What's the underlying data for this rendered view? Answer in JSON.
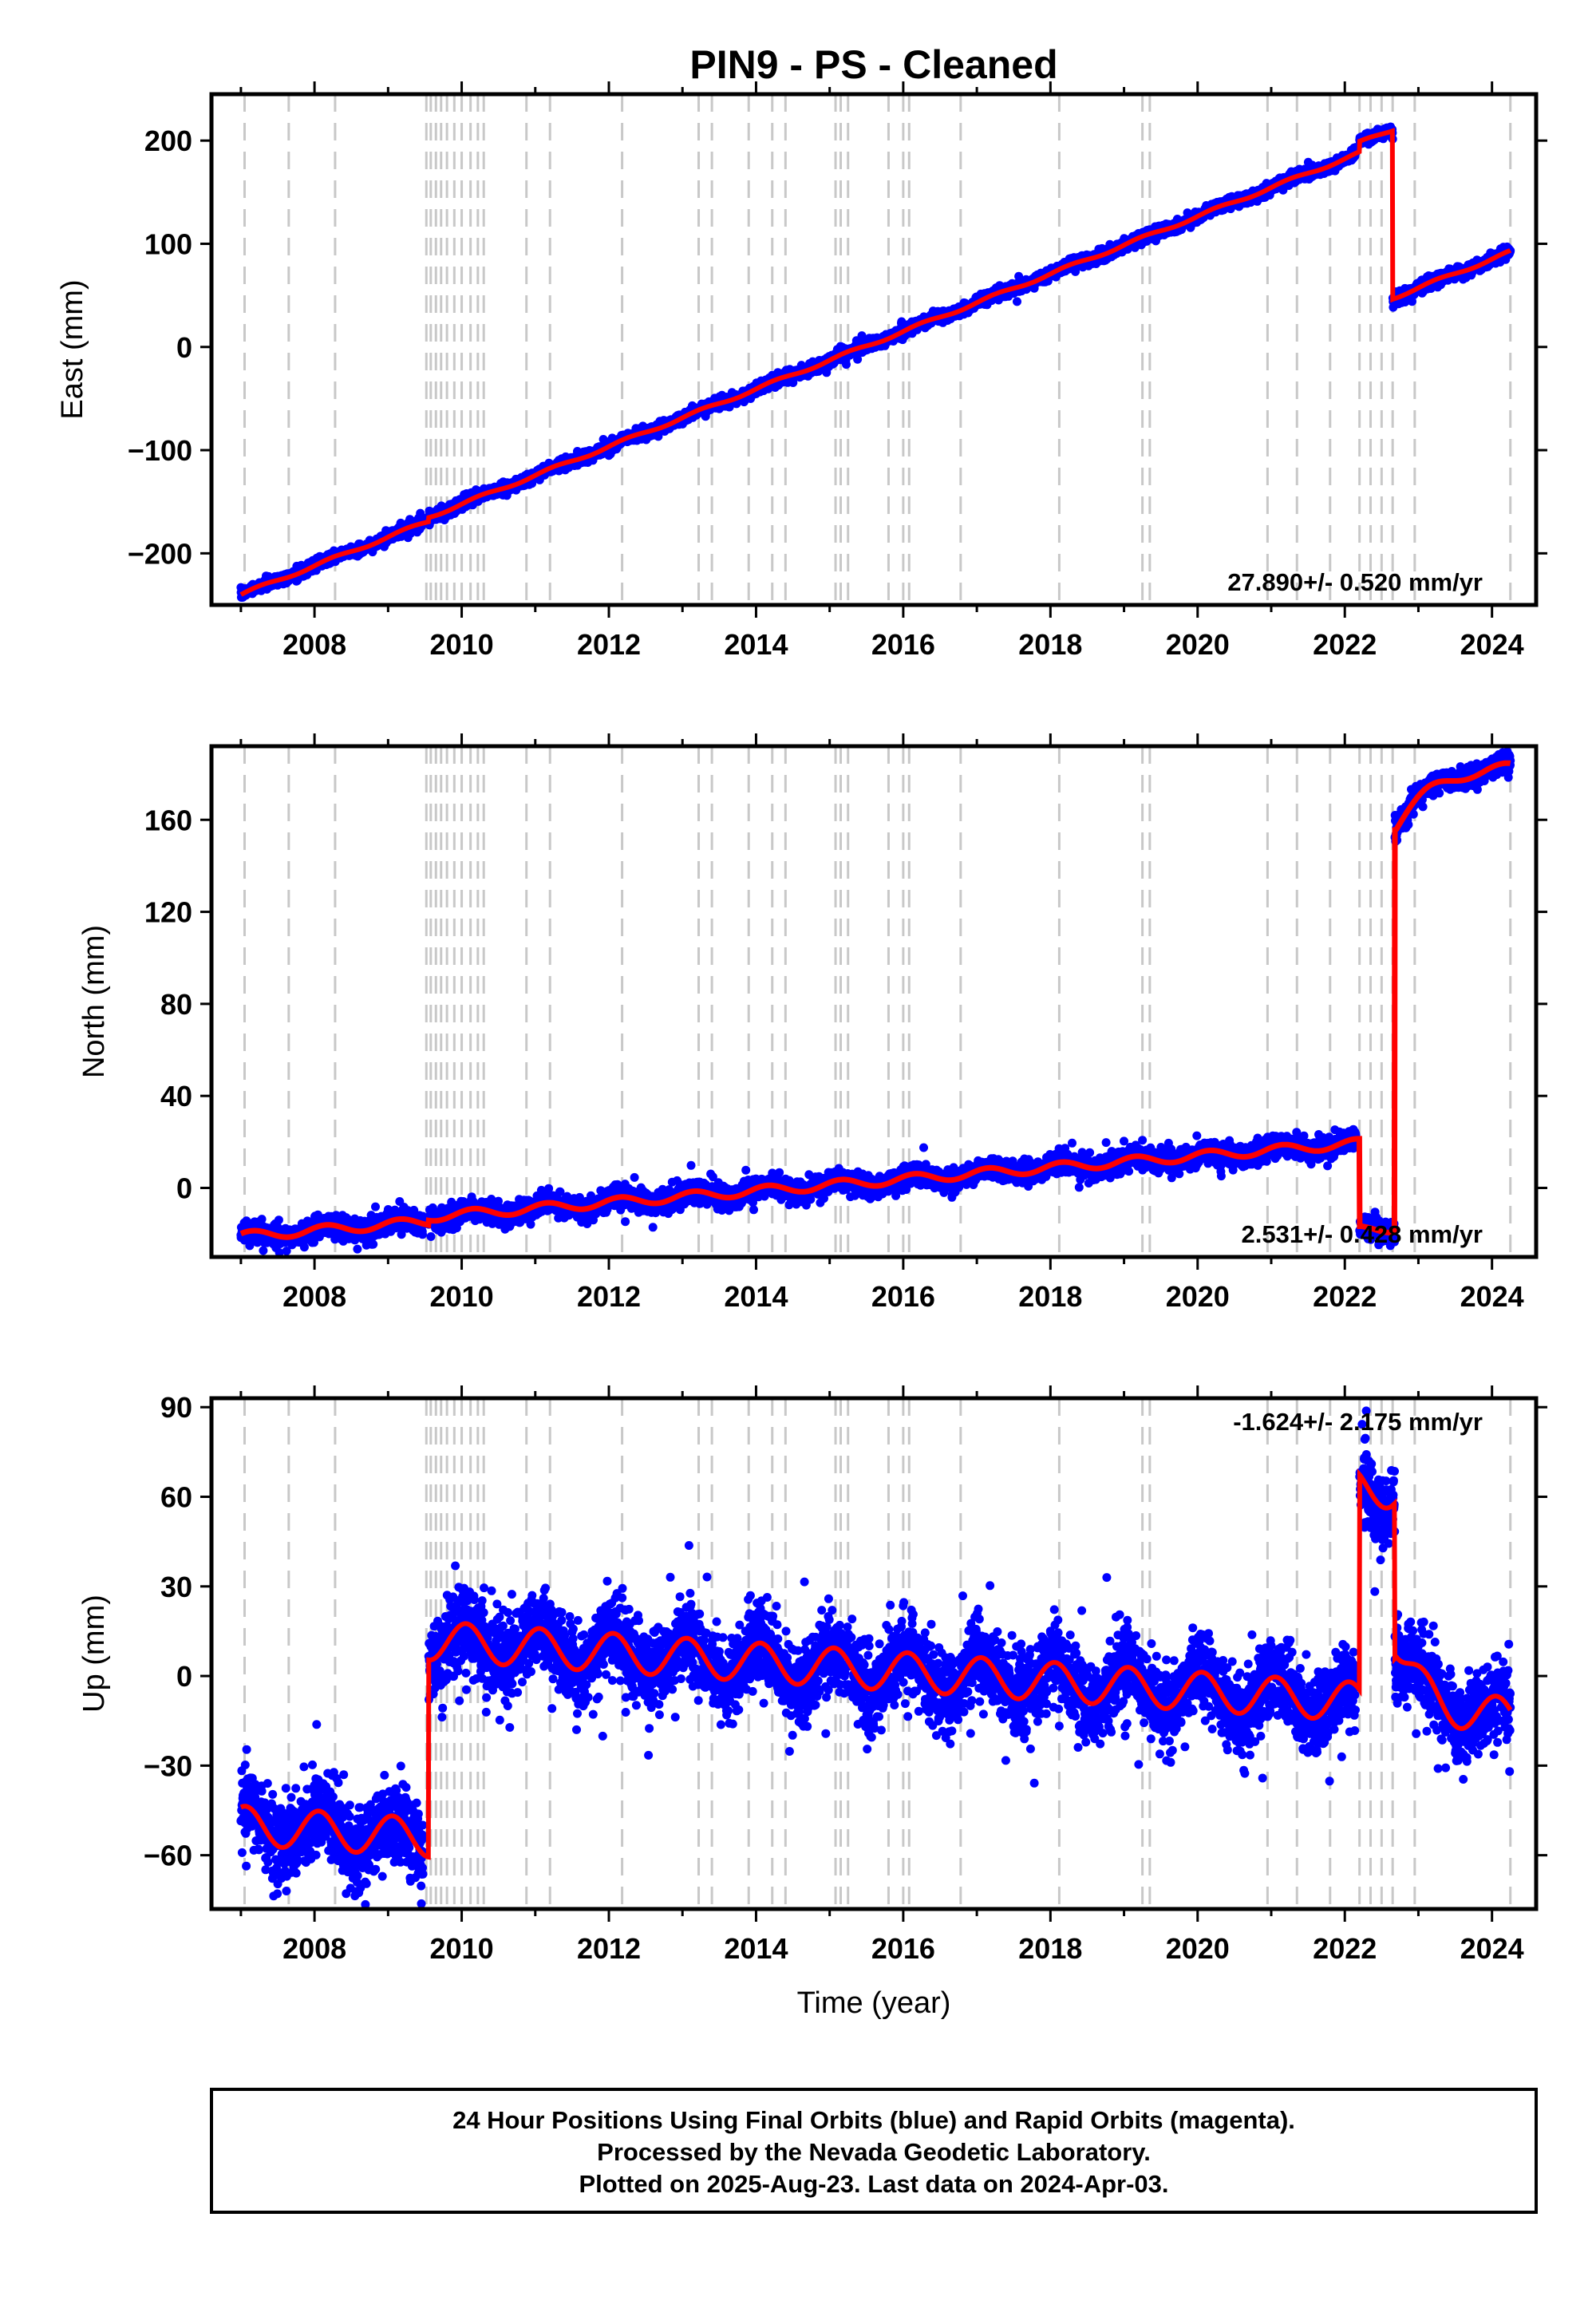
{
  "title": "PIN9  - PS - Cleaned",
  "x_axis": {
    "label": "Time (year)",
    "range": [
      2006.6,
      2024.6
    ],
    "ticks": [
      2008,
      2010,
      2012,
      2014,
      2016,
      2018,
      2020,
      2022,
      2024
    ]
  },
  "colors": {
    "data": "#0000ff",
    "model": "#ff0000",
    "event_lines": "#c8c8c8",
    "frame": "#000000"
  },
  "event_lines": [
    2007.05,
    2007.65,
    2008.28,
    2009.52,
    2009.58,
    2009.65,
    2009.72,
    2009.8,
    2009.9,
    2010.0,
    2010.12,
    2010.22,
    2010.3,
    2010.88,
    2011.2,
    2012.18,
    2013.22,
    2013.4,
    2013.9,
    2014.22,
    2014.4,
    2015.08,
    2015.15,
    2015.25,
    2015.8,
    2016.0,
    2016.08,
    2016.78,
    2018.12,
    2019.25,
    2019.35,
    2020.95,
    2021.35,
    2021.8,
    2022.2,
    2022.35,
    2022.5,
    2022.65,
    2022.95,
    2024.25
  ],
  "chart_data": [
    {
      "type": "scatter",
      "name": "East",
      "ylabel": "East (mm)",
      "ylim": [
        -250,
        245
      ],
      "yticks": [
        -200,
        -100,
        0,
        100,
        200
      ],
      "rate_text": "27.890+/- 0.520 mm/yr",
      "x_range": [
        2007.0,
        2024.25
      ],
      "trend": {
        "slope": 27.89,
        "ref_year": 2007.0,
        "ref_value": -240
      },
      "seasonal": {
        "amplitude": 1.5,
        "phase": 0.0
      },
      "steps": [
        {
          "year": 2009.55,
          "offset": 4
        },
        {
          "year": 2022.2,
          "offset": 10
        },
        {
          "year": 2022.65,
          "offset": -163
        }
      ],
      "noise_sd": 2.5,
      "outlier_sd": 4,
      "n_points": 6200,
      "line_width": 6
    },
    {
      "type": "scatter",
      "name": "North",
      "ylabel": "North (mm)",
      "ylim": [
        -30,
        192
      ],
      "yticks": [
        0,
        40,
        80,
        120,
        160
      ],
      "rate_text": "2.531+/- 0.428 mm/yr",
      "x_range": [
        2007.0,
        2024.25
      ],
      "trend": {
        "slope": 2.53,
        "ref_year": 2007.0,
        "ref_value": -21
      },
      "seasonal": {
        "amplitude": 2.0,
        "phase": 0.6
      },
      "steps": [
        {
          "year": 2009.55,
          "offset": 2
        },
        {
          "year": 2022.2,
          "offset": -38
        },
        {
          "year": 2022.68,
          "offset": 175
        }
      ],
      "extra_post": {
        "start": 2022.7,
        "rise": 22,
        "tau": 0.45
      },
      "noise_sd": 2.2,
      "outlier_sd": 3.5,
      "n_points": 6200,
      "line_width": 7
    },
    {
      "type": "scatter",
      "name": "Up",
      "ylabel": "Up (mm)",
      "xlabel": "Time (year)",
      "ylim": [
        -78,
        93
      ],
      "yticks": [
        -60,
        -30,
        0,
        30,
        60,
        90
      ],
      "rate_text": "-1.624+/- 2.175 mm/yr",
      "x_range": [
        2007.0,
        2024.25
      ],
      "trend": {
        "slope": -1.624,
        "ref_year": 2007.0,
        "ref_value": -50
      },
      "seasonal": {
        "amplitude": 6.5,
        "phase": 1.2
      },
      "steps": [
        {
          "year": 2009.55,
          "offset": 66
        },
        {
          "year": 2022.2,
          "offset": 72
        },
        {
          "year": 2022.68,
          "offset": -52
        }
      ],
      "extra_post": {
        "start": 2022.7,
        "rise": -22,
        "tau": 0.35
      },
      "noise_sd": 6.5,
      "outlier_sd": 11,
      "n_points": 6200,
      "line_width": 6
    }
  ],
  "footer": {
    "lines": [
      "24 Hour Positions Using Final Orbits (blue) and Rapid Orbits (magenta).",
      "Processed by the Nevada Geodetic Laboratory.",
      "Plotted on 2025-Aug-23. Last data on 2024-Apr-03."
    ]
  }
}
